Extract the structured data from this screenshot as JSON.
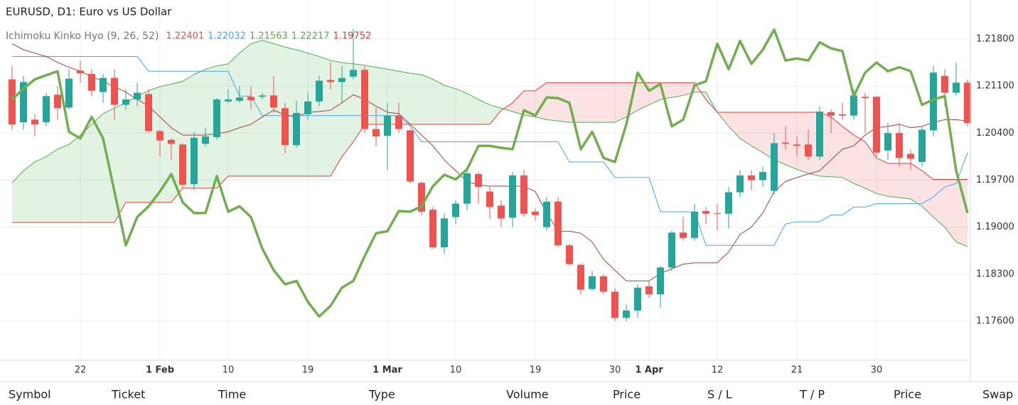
{
  "chart_data": {
    "type": "candlestick",
    "title": "EURUSD, D1: Euro vs US Dollar",
    "legend": {
      "text": "Ichimoku Kinko Hyo (9, 26, 52)",
      "values": [
        1.22401,
        1.22032,
        1.21563,
        1.22217,
        1.19752
      ],
      "colors": [
        "#d9534f",
        "#42a5f5",
        "#66a84a",
        "#4caf50",
        "#e53935"
      ]
    },
    "categories": [
      null,
      null,
      null,
      null,
      null,
      null,
      "22",
      null,
      null,
      null,
      null,
      null,
      null,
      "1 Feb",
      null,
      null,
      null,
      null,
      null,
      "10",
      null,
      null,
      null,
      null,
      null,
      null,
      "19",
      null,
      null,
      null,
      null,
      null,
      null,
      "1 Mar",
      null,
      null,
      null,
      null,
      null,
      "10",
      null,
      null,
      null,
      null,
      null,
      null,
      "19",
      null,
      null,
      null,
      null,
      null,
      null,
      "30",
      null,
      null,
      "1 Apr",
      null,
      null,
      null,
      null,
      null,
      "12",
      null,
      null,
      null,
      null,
      null,
      null,
      "21",
      null,
      null,
      null,
      null,
      null,
      null,
      "30",
      null,
      null,
      null,
      null,
      null,
      null,
      null,
      null
    ],
    "open": [
      1.212,
      1.2056,
      1.206,
      1.2056,
      1.2097,
      1.2078,
      1.2133,
      1.2128,
      1.2101,
      1.2122,
      1.2082,
      1.209,
      1.2098,
      1.2043,
      1.203,
      1.2023,
      1.1964,
      1.2024,
      1.2034,
      1.2087,
      1.2088,
      1.2094,
      1.2094,
      1.2096,
      1.2077,
      1.2022,
      1.2068,
      1.2087,
      1.2119,
      1.2116,
      1.2124,
      1.2134,
      1.2046,
      1.2036,
      1.2066,
      1.2044,
      1.1966,
      1.1926,
      1.187,
      1.1915,
      1.1935,
      1.1979,
      1.1953,
      1.1932,
      1.1914,
      1.1977,
      1.1923,
      1.19,
      1.1938,
      1.1873,
      1.1844,
      1.1808,
      1.1827,
      1.1804,
      1.1765,
      1.1776,
      1.1812,
      1.18,
      1.184,
      1.1892,
      1.1884,
      1.1924,
      1.1921,
      1.192,
      1.1952,
      1.1977,
      1.197,
      1.1954,
      1.2026,
      1.2023,
      1.2023,
      1.2005,
      1.2071,
      1.2068,
      1.2066,
      1.2094,
      1.2094,
      1.2014,
      1.204,
      1.2009,
      1.1997,
      1.2044,
      1.2125,
      1.21,
      1.2115
    ],
    "high": [
      1.214,
      1.2125,
      1.2068,
      1.21,
      1.211,
      1.2135,
      1.2148,
      1.2135,
      1.2128,
      1.2135,
      1.2105,
      1.2115,
      1.2105,
      1.2045,
      1.2032,
      1.2025,
      1.2042,
      1.2048,
      1.2092,
      1.2105,
      1.211,
      1.211,
      1.21,
      1.2125,
      1.2085,
      1.2088,
      1.21,
      1.2125,
      1.2145,
      1.214,
      1.2195,
      1.214,
      1.2078,
      1.2085,
      1.2085,
      1.2045,
      1.1968,
      1.193,
      1.192,
      1.194,
      1.1985,
      1.1982,
      1.196,
      1.194,
      1.1982,
      1.1985,
      1.1928,
      1.1945,
      1.1945,
      1.1875,
      1.1846,
      1.1835,
      1.183,
      1.181,
      1.1785,
      1.1815,
      1.182,
      1.1842,
      1.1895,
      1.1915,
      1.1935,
      1.193,
      1.1935,
      1.196,
      1.1985,
      1.1985,
      1.199,
      1.204,
      1.205,
      1.2035,
      1.2045,
      1.208,
      1.2075,
      1.2085,
      1.2105,
      1.21,
      1.2095,
      1.2055,
      1.2055,
      1.2015,
      1.205,
      1.214,
      1.2135,
      1.2145,
      1.212
    ],
    "low": [
      1.2045,
      1.2045,
      1.2035,
      1.205,
      1.206,
      1.2075,
      1.2115,
      1.2095,
      1.2085,
      1.206,
      1.2075,
      1.208,
      1.204,
      1.2005,
      1.2,
      1.1958,
      1.1955,
      1.202,
      1.203,
      1.2085,
      1.2085,
      1.2075,
      1.209,
      1.207,
      1.201,
      1.2018,
      1.206,
      1.208,
      1.2105,
      1.2085,
      1.212,
      1.204,
      1.202,
      1.1985,
      1.204,
      1.1965,
      1.1918,
      1.1868,
      1.186,
      1.1905,
      1.1925,
      1.1935,
      1.1912,
      1.19,
      1.19,
      1.1915,
      1.191,
      1.1895,
      1.187,
      1.1843,
      1.18,
      1.1805,
      1.18,
      1.176,
      1.176,
      1.1765,
      1.1795,
      1.178,
      1.1835,
      1.188,
      1.188,
      1.1905,
      1.1895,
      1.1898,
      1.1945,
      1.1955,
      1.196,
      1.1948,
      1.2015,
      1.2005,
      1.2,
      1.2,
      1.204,
      1.206,
      1.206,
      1.204,
      1.2005,
      1.2,
      1.199,
      1.1985,
      1.199,
      1.2035,
      1.208,
      1.2095,
      1.205
    ],
    "close": [
      1.2053,
      1.2116,
      1.2053,
      1.2095,
      1.2077,
      1.2121,
      1.2129,
      1.2103,
      1.2122,
      1.2082,
      1.209,
      1.21,
      1.2043,
      1.2029,
      1.2024,
      1.1963,
      1.2033,
      1.2035,
      1.209,
      1.209,
      1.2093,
      1.2089,
      1.2096,
      1.2078,
      1.2022,
      1.207,
      1.2087,
      1.2118,
      1.2116,
      1.2122,
      1.2134,
      1.2046,
      1.2035,
      1.2066,
      1.2046,
      1.1968,
      1.1923,
      1.187,
      1.1913,
      1.1935,
      1.198,
      1.196,
      1.193,
      1.1913,
      1.1977,
      1.192,
      1.1918,
      1.1938,
      1.1873,
      1.1845,
      1.1807,
      1.1827,
      1.1804,
      1.1765,
      1.1776,
      1.181,
      1.18,
      1.184,
      1.1892,
      1.1884,
      1.1923,
      1.192,
      1.192,
      1.1952,
      1.1977,
      1.197,
      1.1982,
      1.2025,
      1.2024,
      1.2021,
      1.2005,
      1.2072,
      1.2066,
      1.2066,
      1.2096,
      1.2092,
      1.2011,
      1.204,
      1.2003,
      1.2002,
      1.2045,
      1.213,
      1.21,
      1.2115,
      1.2055
    ],
    "up_color": "#26a69a",
    "down_color": "#ef5350",
    "series": [
      {
        "color": "#4caf50",
        "width": 1,
        "values": [
          1.1966,
          1.1984,
          1.1997,
          1.2005,
          1.2016,
          1.2023,
          1.2037,
          1.2053,
          1.2069,
          1.2077,
          1.2085,
          1.2095,
          1.2103,
          1.2109,
          1.2113,
          1.2117,
          1.2127,
          1.2135,
          1.214,
          1.2143,
          1.2159,
          1.2173,
          1.2178,
          1.2173,
          1.2168,
          1.2164,
          1.2159,
          1.2154,
          1.2148,
          1.2145,
          1.2143,
          1.2141,
          1.2138,
          1.2135,
          1.2132,
          1.2129,
          1.2127,
          1.212,
          1.2111,
          1.2106,
          1.2099,
          1.209,
          1.2082,
          1.2077,
          1.2072,
          1.2067,
          1.2064,
          1.206,
          1.2058,
          1.2056,
          1.2056,
          1.2056,
          1.2056,
          1.2056,
          1.2064,
          1.2074,
          1.2082,
          1.209,
          1.2093,
          1.2096,
          1.2101,
          1.2101,
          1.2071,
          1.205,
          1.2032,
          1.2021,
          1.2011,
          1.2,
          1.1993,
          1.1986,
          1.198,
          1.1976,
          1.1975,
          1.1974,
          1.1965,
          1.1958,
          1.195,
          1.1946,
          1.1944,
          1.1942,
          1.1931,
          1.1915,
          1.19,
          1.1878,
          1.1871
        ]
      },
      {
        "color": "#e53935",
        "width": 1,
        "values": [
          1.1907,
          1.1907,
          1.1907,
          1.1907,
          1.1907,
          1.1907,
          1.1907,
          1.1907,
          1.1907,
          1.1907,
          1.1937,
          1.1937,
          1.1937,
          1.1937,
          1.1937,
          1.1958,
          1.1958,
          1.1958,
          1.1958,
          1.1976,
          1.1976,
          1.1976,
          1.1976,
          1.1976,
          1.1976,
          1.1976,
          1.1976,
          1.1976,
          1.1976,
          1.2005,
          1.2027,
          1.2053,
          1.2053,
          1.2053,
          1.2053,
          1.2053,
          1.2053,
          1.2053,
          1.2053,
          1.2053,
          1.2053,
          1.2053,
          1.2053,
          1.2074,
          1.2085,
          1.2103,
          1.2103,
          1.2115,
          1.2115,
          1.2115,
          1.2115,
          1.2115,
          1.2115,
          1.2115,
          1.2115,
          1.2115,
          1.2115,
          1.2115,
          1.2115,
          1.2115,
          1.2115,
          1.209,
          1.2071,
          1.2071,
          1.2071,
          1.2071,
          1.2071,
          1.2071,
          1.2071,
          1.2071,
          1.2071,
          1.2071,
          1.2064,
          1.205,
          1.2037,
          1.2027,
          1.2003,
          1.1995,
          1.1995,
          1.1995,
          1.1984,
          1.1971,
          1.1971,
          1.1971,
          1.1971
        ]
      },
      {
        "color": "#42a5f5",
        "width": 1,
        "values": [
          1.2154,
          1.2154,
          1.2154,
          1.2154,
          1.2154,
          1.2154,
          1.2154,
          1.2154,
          1.2154,
          1.2154,
          1.2154,
          1.2154,
          1.2132,
          1.2132,
          1.2132,
          1.2132,
          1.2132,
          1.2132,
          1.2132,
          1.2132,
          1.2095,
          1.2095,
          1.2066,
          1.2066,
          1.2066,
          1.2066,
          1.2066,
          1.2066,
          1.2066,
          1.2066,
          1.2066,
          1.2066,
          1.2066,
          1.2066,
          1.2066,
          1.205,
          1.2027,
          1.2027,
          1.2027,
          1.2027,
          1.2027,
          1.2027,
          1.2027,
          1.2027,
          1.2027,
          1.2027,
          1.2027,
          1.2027,
          1.2027,
          1.1997,
          1.1997,
          1.1997,
          1.1997,
          1.1974,
          1.1974,
          1.1974,
          1.1974,
          1.1923,
          1.1923,
          1.1923,
          1.1923,
          1.1873,
          1.1873,
          1.1873,
          1.1873,
          1.1873,
          1.1873,
          1.1873,
          1.1905,
          1.1908,
          1.1908,
          1.1908,
          1.1918,
          1.1918,
          1.193,
          1.193,
          1.1935,
          1.1935,
          1.1935,
          1.1935,
          1.1935,
          1.1945,
          1.196,
          1.1965,
          1.2011
        ]
      },
      {
        "color": "#a0413a",
        "width": 1,
        "values": [
          1.2173,
          1.2164,
          1.2159,
          1.2154,
          1.2145,
          1.2138,
          1.2132,
          1.2124,
          1.2117,
          1.2109,
          1.2101,
          1.209,
          1.208,
          1.2064,
          1.2048,
          1.2037,
          1.2037,
          1.2037,
          1.2039,
          1.2042,
          1.2048,
          1.2053,
          1.2064,
          1.2074,
          1.2067,
          1.2064,
          1.2071,
          1.2072,
          1.2074,
          1.2085,
          1.2097,
          1.209,
          1.208,
          1.2071,
          1.2069,
          1.2053,
          1.2037,
          1.2021,
          1.2,
          1.1984,
          1.1968,
          1.1963,
          1.1961,
          1.1961,
          1.1961,
          1.1961,
          1.1953,
          1.1921,
          1.1894,
          1.1894,
          1.1891,
          1.1878,
          1.1852,
          1.1836,
          1.182,
          1.182,
          1.182,
          1.1831,
          1.1838,
          1.1845,
          1.1847,
          1.1847,
          1.1847,
          1.1863,
          1.1889,
          1.19,
          1.1921,
          1.1953,
          1.1968,
          1.1974,
          1.1979,
          1.1984,
          1.2,
          1.2016,
          1.2021,
          1.2037,
          1.2048,
          1.205,
          1.2053,
          1.2048,
          1.205,
          1.2056,
          1.206,
          1.206,
          1.2058
        ]
      },
      {
        "color": "#72ad4f",
        "width": 3.5,
        "values": [
          1.209,
          1.2106,
          1.212,
          1.2126,
          1.2132,
          1.2042,
          1.2032,
          1.2064,
          1.2032,
          1.1953,
          1.1873,
          1.1915,
          1.1931,
          1.1953,
          1.1979,
          1.1937,
          1.1921,
          1.1921,
          1.1976,
          1.1923,
          1.1931,
          1.1915,
          1.1868,
          1.1836,
          1.1815,
          1.182,
          1.1789,
          1.1767,
          1.1783,
          1.181,
          1.182,
          1.1857,
          1.1891,
          1.1894,
          1.1924,
          1.1923,
          1.1931,
          1.1961,
          1.1978,
          1.1971,
          1.1986,
          1.2021,
          1.2021,
          1.2018,
          1.2016,
          1.2074,
          1.2066,
          1.2093,
          1.2092,
          1.2085,
          1.2016,
          1.2042,
          1.2003,
          1.1997,
          1.2053,
          1.213,
          1.2103,
          1.2113,
          1.205,
          1.206,
          1.2111,
          1.2117,
          1.2173,
          1.2135,
          1.2177,
          1.2143,
          1.2164,
          1.2194,
          1.2148,
          1.2151,
          1.2148,
          1.2175,
          1.2166,
          1.2162,
          1.2095,
          1.213,
          1.2145,
          1.2132,
          1.2138,
          1.2132,
          1.2082,
          1.209,
          1.2095,
          1.1984,
          1.1921
        ]
      }
    ],
    "cloud": {
      "series": [
        0,
        1
      ],
      "colors": [
        "rgba(76,175,80,0.16)",
        "rgba(239,83,80,0.16)"
      ]
    },
    "ylim": [
      1.1702,
      1.2238
    ],
    "yticks": [
      {
        "value": 1.176,
        "label": "1.17600"
      },
      {
        "value": 1.183,
        "label": "1.18300"
      },
      {
        "value": 1.19,
        "label": "1.19000"
      },
      {
        "value": 1.197,
        "label": "1.19700"
      },
      {
        "value": 1.204,
        "label": "1.20400"
      },
      {
        "value": 1.211,
        "label": "1.21100"
      },
      {
        "value": 1.218,
        "label": "1.21800"
      }
    ],
    "grid": true
  },
  "table_header": [
    "Symbol",
    "Ticket",
    "Time",
    "Type",
    "Volume",
    "Price",
    "S / L",
    "T / P",
    "Price",
    "Swap"
  ]
}
